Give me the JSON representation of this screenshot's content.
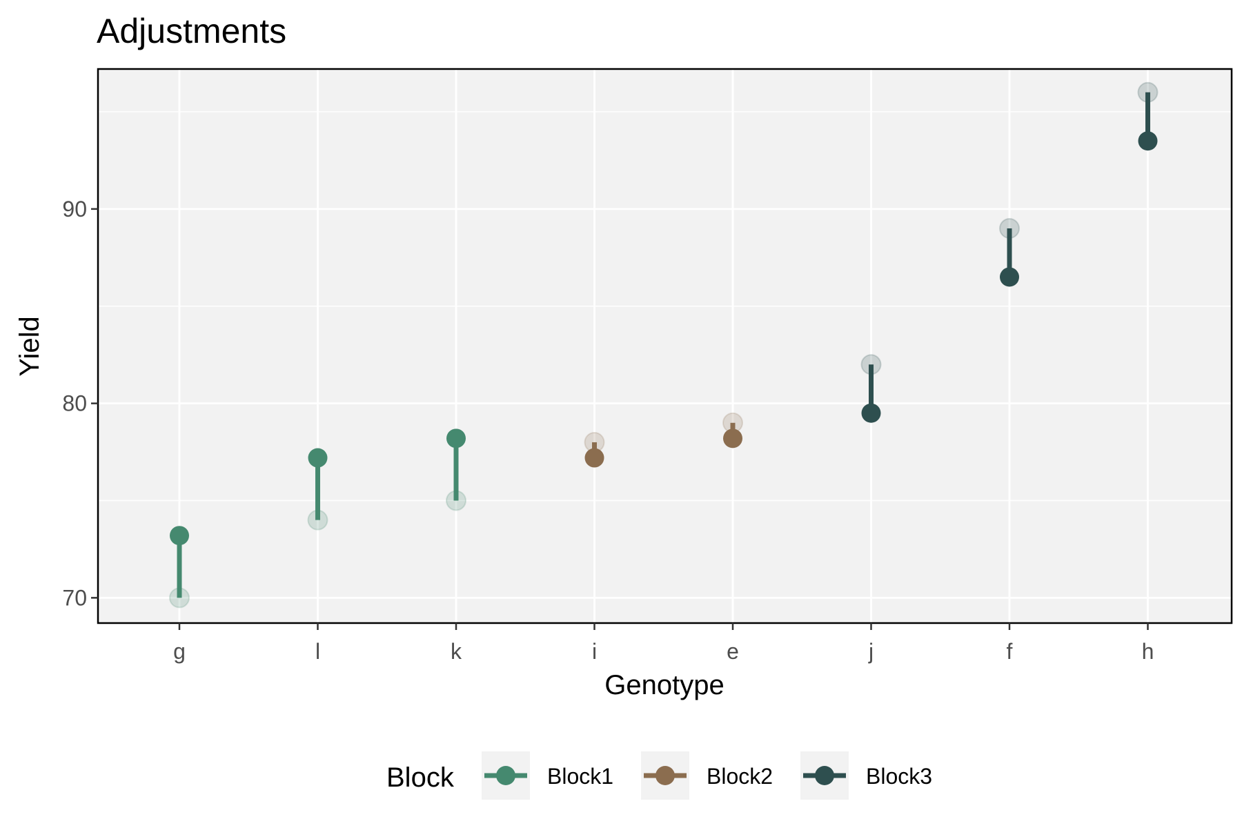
{
  "chart_data": {
    "type": "scatter",
    "title": "Adjustments",
    "xlabel": "Genotype",
    "ylabel": "Yield",
    "categories": [
      "g",
      "l",
      "k",
      "i",
      "e",
      "j",
      "f",
      "h"
    ],
    "yticks": [
      70,
      80,
      90
    ],
    "ylim": [
      68.7,
      97.2
    ],
    "grid": true,
    "legend": {
      "title": "Block",
      "position": "bottom"
    },
    "series": [
      {
        "name": "Block1",
        "color": "#45896f",
        "points": [
          {
            "x": "g",
            "raw": 70.0,
            "adjusted": 73.2
          },
          {
            "x": "l",
            "raw": 74.0,
            "adjusted": 77.2
          },
          {
            "x": "k",
            "raw": 75.0,
            "adjusted": 78.2
          }
        ]
      },
      {
        "name": "Block2",
        "color": "#8b6d4f",
        "points": [
          {
            "x": "i",
            "raw": 78.0,
            "adjusted": 77.2
          },
          {
            "x": "e",
            "raw": 79.0,
            "adjusted": 78.2
          }
        ]
      },
      {
        "name": "Block3",
        "color": "#2e4f4f",
        "points": [
          {
            "x": "j",
            "raw": 82.0,
            "adjusted": 79.5
          },
          {
            "x": "f",
            "raw": 89.0,
            "adjusted": 86.5
          },
          {
            "x": "h",
            "raw": 96.0,
            "adjusted": 93.5
          }
        ]
      }
    ]
  }
}
